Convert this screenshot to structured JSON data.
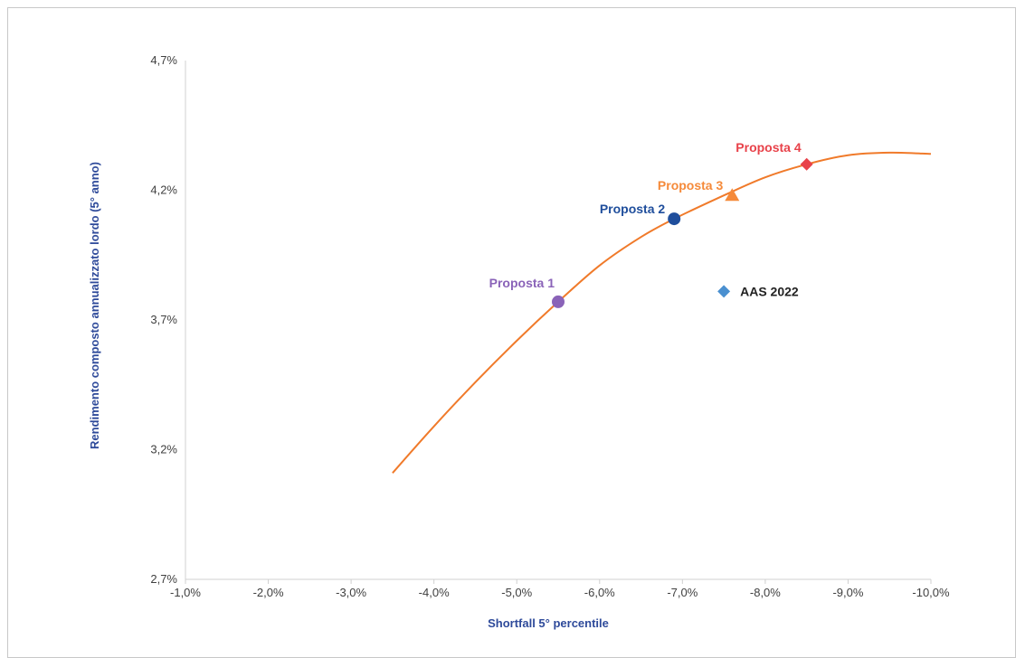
{
  "chart_data": {
    "type": "scatter",
    "title": "",
    "xlabel": "Shortfall 5° percentile",
    "ylabel": "Rendimento composto annualizzato lordo (5° anno)",
    "x_axis_reversed": true,
    "xlim": [
      -1.0,
      -10.0
    ],
    "ylim": [
      2.7,
      4.7
    ],
    "x_ticks": [
      "-1,0%",
      "-2,0%",
      "-3,0%",
      "-4,0%",
      "-5,0%",
      "-6,0%",
      "-7,0%",
      "-8,0%",
      "-9,0%",
      "-10,0%"
    ],
    "x_tick_values": [
      -1,
      -2,
      -3,
      -4,
      -5,
      -6,
      -7,
      -8,
      -9,
      -10
    ],
    "y_ticks": [
      "2,7%",
      "3,2%",
      "3,7%",
      "4,2%",
      "4,7%"
    ],
    "y_tick_values": [
      2.7,
      3.2,
      3.7,
      4.2,
      4.7
    ],
    "grid": false,
    "frontier": {
      "color": "#f07a2a",
      "x": [
        -3.5,
        -4.0,
        -4.5,
        -5.0,
        -5.5,
        -6.0,
        -6.5,
        -6.9,
        -7.5,
        -8.0,
        -8.5,
        -9.0,
        -9.5,
        -10.0
      ],
      "y": [
        3.11,
        3.29,
        3.46,
        3.62,
        3.77,
        3.91,
        4.02,
        4.09,
        4.18,
        4.25,
        4.3,
        4.335,
        4.345,
        4.34
      ]
    },
    "points": [
      {
        "name": "Proposta 1",
        "x": -5.5,
        "y": 3.77,
        "marker": "circle",
        "color": "#8a63b8"
      },
      {
        "name": "Proposta 2",
        "x": -6.9,
        "y": 4.09,
        "marker": "circle",
        "color": "#1f4e9c"
      },
      {
        "name": "Proposta 3",
        "x": -7.6,
        "y": 4.18,
        "marker": "triangle",
        "color": "#f58a3a"
      },
      {
        "name": "Proposta 4",
        "x": -8.5,
        "y": 4.3,
        "marker": "diamond",
        "color": "#e8424a"
      },
      {
        "name": "AAS 2022",
        "x": -7.5,
        "y": 3.81,
        "marker": "diamond",
        "color": "#4a90d0"
      }
    ]
  }
}
